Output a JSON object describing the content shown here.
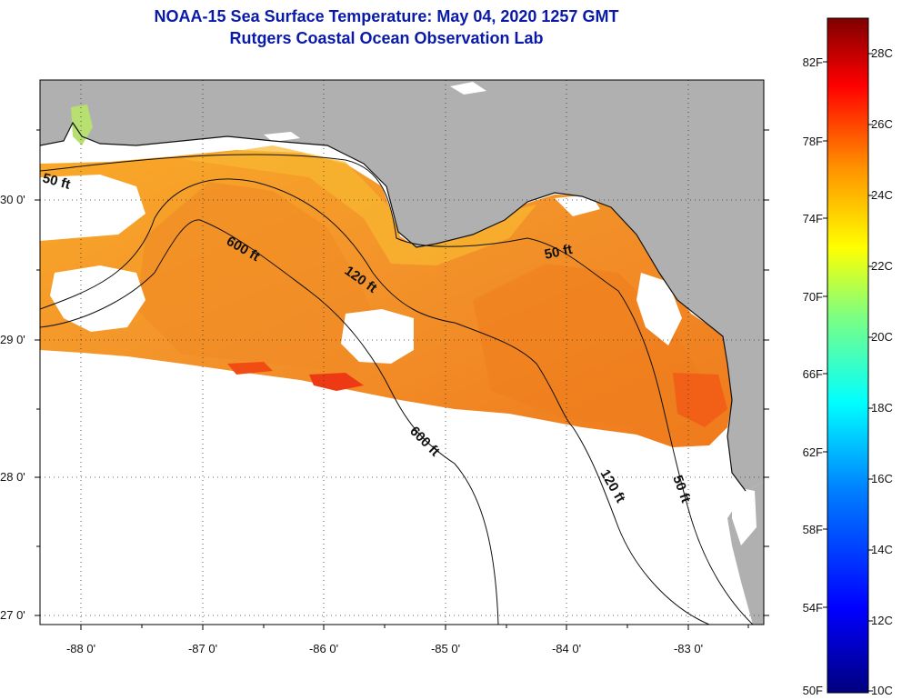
{
  "title": "NOAA-15 Sea Surface Temperature:  May 04, 2020 1257 GMT",
  "subtitle": "Rutgers Coastal Ocean Observation Lab",
  "map": {
    "lon_range": [
      -88.3,
      -82.5
    ],
    "lat_range": [
      26.97,
      30.85
    ],
    "lon_labels": [
      "-88 0'",
      "-87 0'",
      "-86 0'",
      "-85 0'",
      "-84 0'",
      "-83 0'"
    ],
    "lon_values": [
      -88,
      -87,
      -86,
      -85,
      -84,
      -83
    ],
    "lat_labels": [
      "27 0'",
      "28 0'",
      "29 0'",
      "30 0'"
    ],
    "lat_values": [
      27,
      28,
      29,
      30
    ],
    "land_color": "#b0b0b0",
    "cloud_color": "#ffffff",
    "contours": [
      {
        "label": "50 ft",
        "depth_ft": 50
      },
      {
        "label": "120 ft",
        "depth_ft": 120
      },
      {
        "label": "600 ft",
        "depth_ft": 600
      },
      {
        "label": "50 ft",
        "depth_ft": 50
      },
      {
        "label": "600 ft",
        "depth_ft": 600
      },
      {
        "label": "120 ft",
        "depth_ft": 120
      },
      {
        "label": "50 ft",
        "depth_ft": 50
      }
    ]
  },
  "colorbar": {
    "min_c": 10,
    "max_c": 29,
    "celsius_labels": [
      "28C",
      "26C",
      "24C",
      "22C",
      "20C",
      "18C",
      "16C",
      "14C",
      "12C",
      "10C"
    ],
    "celsius_values": [
      28,
      26,
      24,
      22,
      20,
      18,
      16,
      14,
      12,
      10
    ],
    "fahrenheit_labels": [
      "82F",
      "78F",
      "74F",
      "70F",
      "66F",
      "62F",
      "58F",
      "54F",
      "50F"
    ],
    "fahrenheit_values": [
      82,
      78,
      74,
      70,
      66,
      62,
      58,
      54,
      50
    ],
    "colors": [
      "#00007f",
      "#0000ff",
      "#007fff",
      "#00ffff",
      "#7fff7f",
      "#ffff00",
      "#ff7f00",
      "#ff0000",
      "#7f0000"
    ]
  }
}
